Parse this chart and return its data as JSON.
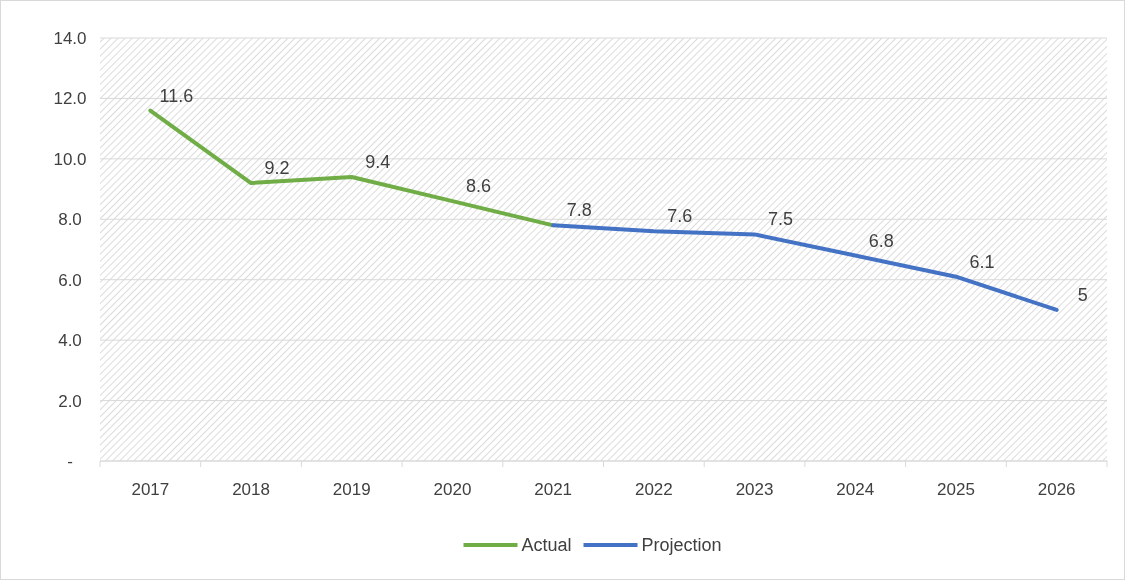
{
  "chart_data": {
    "type": "line",
    "categories": [
      "2017",
      "2018",
      "2019",
      "2020",
      "2021",
      "2022",
      "2023",
      "2024",
      "2025",
      "2026"
    ],
    "series": [
      {
        "name": "Actual",
        "color": "#70ad47",
        "values": [
          11.6,
          9.2,
          9.4,
          8.6,
          7.8,
          null,
          null,
          null,
          null,
          null
        ],
        "value_labels": [
          "11.6",
          "9.2",
          "9.4",
          "8.6",
          null,
          null,
          null,
          null,
          null,
          null
        ]
      },
      {
        "name": "Projection",
        "color": "#4472c4",
        "values": [
          null,
          null,
          null,
          null,
          7.8,
          7.6,
          7.5,
          6.8,
          6.1,
          5
        ],
        "value_labels": [
          null,
          null,
          null,
          null,
          "7.8",
          "7.6",
          "7.5",
          "6.8",
          "6.1",
          "5"
        ]
      }
    ],
    "ylim": [
      0,
      14
    ],
    "yticks": [
      {
        "value": 0,
        "label": "-"
      },
      {
        "value": 2,
        "label": "2.0"
      },
      {
        "value": 4,
        "label": "4.0"
      },
      {
        "value": 6,
        "label": "6.0"
      },
      {
        "value": 8,
        "label": "8.0"
      },
      {
        "value": 10,
        "label": "10.0"
      },
      {
        "value": 12,
        "label": "12.0"
      },
      {
        "value": 14,
        "label": "14.0"
      }
    ],
    "grid": "y",
    "legend": "bottom",
    "marker": "none",
    "line_style": "solid"
  }
}
